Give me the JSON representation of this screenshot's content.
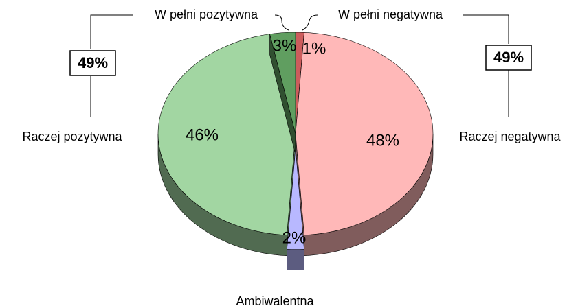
{
  "chart_data": {
    "type": "pie",
    "categories": [
      "W pełni negatywna",
      "Raczej negatywna",
      "Ambiwalentna",
      "Raczej pozytywna",
      "W pełni pozytywna"
    ],
    "values": [
      1,
      48,
      2,
      46,
      3
    ],
    "value_labels": [
      "1%",
      "48%",
      "2%",
      "46%",
      "3%"
    ],
    "colors": [
      "#cc5c5c",
      "#ffb8b8",
      "#b8b8ff",
      "#a2d6a2",
      "#609e60"
    ],
    "exploded": [
      false,
      false,
      true,
      false,
      false
    ],
    "annotations": [
      "49%",
      "49%"
    ]
  }
}
